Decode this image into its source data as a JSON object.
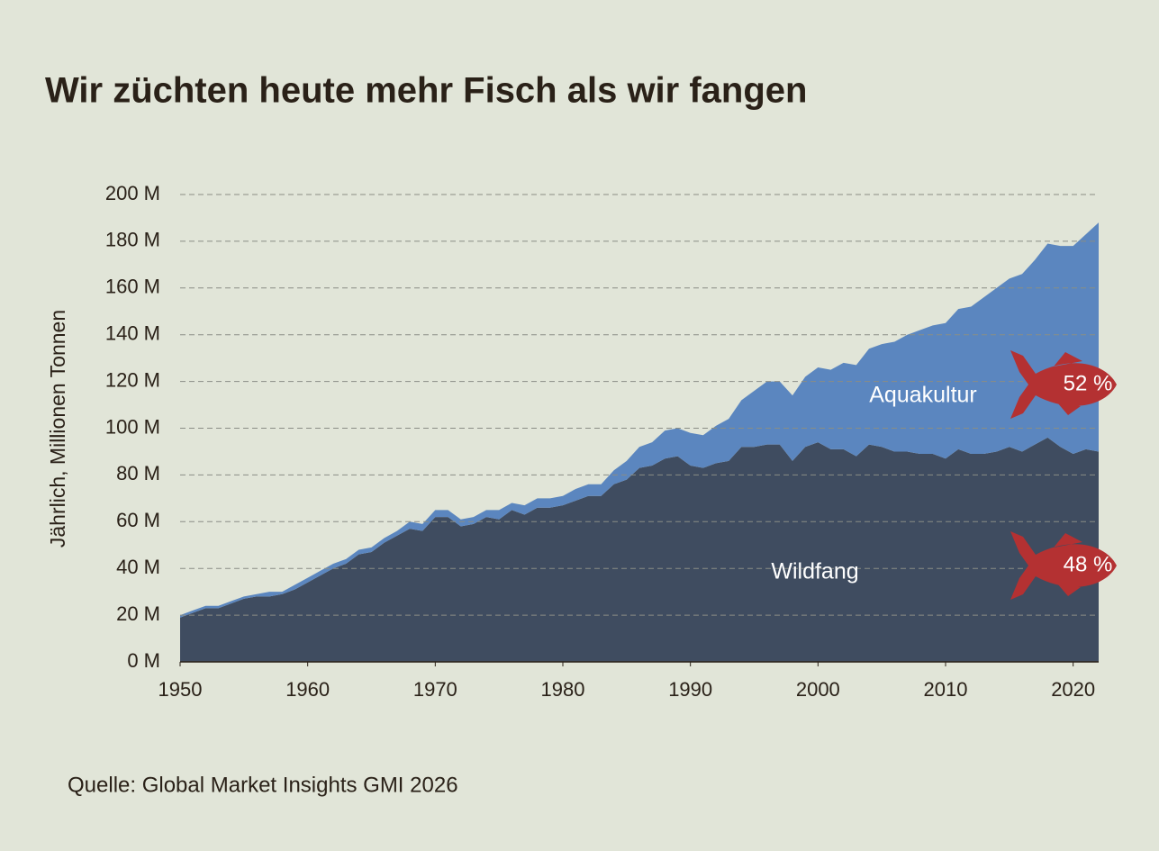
{
  "chart_data": {
    "type": "stacked-area",
    "title": "Wir züchten heute mehr Fisch als wir fangen",
    "y_label": "Jährlich, Millionen Tonnen",
    "source": "Quelle: Global Market Insights GMI 2026",
    "x": [
      1950,
      1951,
      1952,
      1953,
      1954,
      1955,
      1956,
      1957,
      1958,
      1959,
      1960,
      1961,
      1962,
      1963,
      1964,
      1965,
      1966,
      1967,
      1968,
      1969,
      1970,
      1971,
      1972,
      1973,
      1974,
      1975,
      1976,
      1977,
      1978,
      1979,
      1980,
      1981,
      1982,
      1983,
      1984,
      1985,
      1986,
      1987,
      1988,
      1989,
      1990,
      1991,
      1992,
      1993,
      1994,
      1995,
      1996,
      1997,
      1998,
      1999,
      2000,
      2001,
      2002,
      2003,
      2004,
      2005,
      2006,
      2007,
      2008,
      2009,
      2010,
      2011,
      2012,
      2013,
      2014,
      2015,
      2016,
      2017,
      2018,
      2019,
      2020,
      2021,
      2022
    ],
    "series": [
      {
        "name": "Wildfang",
        "color": "#3f4c60",
        "share": 48,
        "share_label": "48 %",
        "values": [
          19,
          21,
          23,
          23,
          25,
          27,
          28,
          28,
          29,
          31,
          34,
          37,
          40,
          42,
          46,
          47,
          51,
          54,
          57,
          56,
          62,
          62,
          58,
          59,
          62,
          61,
          65,
          63,
          66,
          66,
          67,
          69,
          71,
          71,
          76,
          78,
          83,
          84,
          87,
          88,
          84,
          83,
          85,
          86,
          92,
          92,
          93,
          93,
          86,
          92,
          94,
          91,
          91,
          88,
          93,
          92,
          90,
          90,
          89,
          89,
          87,
          91,
          89,
          89,
          90,
          92,
          90,
          93,
          96,
          92,
          89,
          91,
          90
        ]
      },
      {
        "name": "Aquakultur",
        "color": "#5b86bf",
        "share": 52,
        "share_label": "52 %",
        "values": [
          1,
          1,
          1,
          1,
          1,
          1,
          1,
          2,
          1,
          2,
          2,
          2,
          2,
          2,
          2,
          2,
          2,
          2,
          3,
          3,
          3,
          3,
          3,
          3,
          3,
          4,
          3,
          4,
          4,
          4,
          4,
          5,
          5,
          5,
          6,
          8,
          9,
          10,
          12,
          12,
          14,
          14,
          16,
          18,
          20,
          24,
          27,
          27,
          28,
          30,
          32,
          34,
          37,
          39,
          41,
          44,
          47,
          50,
          53,
          55,
          58,
          60,
          63,
          67,
          70,
          72,
          76,
          79,
          83,
          86,
          89,
          92,
          98
        ]
      }
    ],
    "xlim": [
      1950,
      2022
    ],
    "xticks": [
      1950,
      1960,
      1970,
      1980,
      1990,
      2000,
      2010,
      2020
    ],
    "ylim": [
      0,
      200
    ],
    "yticks": [
      {
        "value": 0,
        "label": "0 M"
      },
      {
        "value": 20,
        "label": "20 M"
      },
      {
        "value": 40,
        "label": "40 M"
      },
      {
        "value": 60,
        "label": "60 M"
      },
      {
        "value": 80,
        "label": "80 M"
      },
      {
        "value": 100,
        "label": "100 M"
      },
      {
        "value": 120,
        "label": "120 M"
      },
      {
        "value": 140,
        "label": "140 M"
      },
      {
        "value": 160,
        "label": "160 M"
      },
      {
        "value": 180,
        "label": "180 M"
      },
      {
        "value": 200,
        "label": "200 M"
      }
    ],
    "grid": true,
    "fish_color": "#b43132"
  }
}
